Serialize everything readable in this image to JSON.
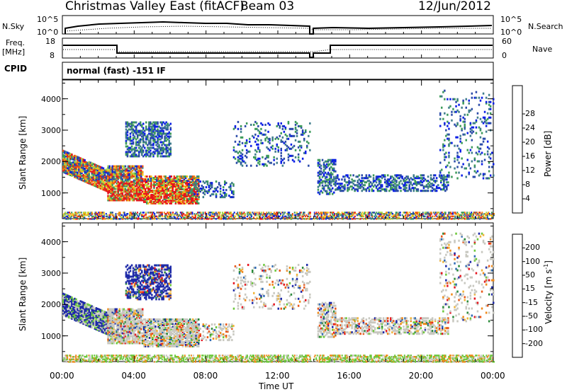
{
  "header": {
    "station_title": "Christmas Valley East (fitACF)",
    "beam_label": "Beam 03",
    "date": "12/Jun/2012"
  },
  "noise_panel": {
    "left_label": "N.Sky",
    "right_label": "N.Search",
    "left_ticks": [
      "10^5",
      "10^0"
    ],
    "right_ticks": [
      "10^5",
      "10^0"
    ]
  },
  "freq_panel": {
    "left_label_1": "Freq.",
    "left_label_2": "[MHz]",
    "right_label": "Nave",
    "left_ticks": [
      "18",
      "8"
    ],
    "right_ticks": [
      "60",
      "0"
    ]
  },
  "cpid_panel": {
    "label": "CPID",
    "program": "normal (fast) -151 IF"
  },
  "chart_data": [
    {
      "type": "heatmap",
      "panel": "power",
      "ylabel": "Slant Range [km]",
      "xlabel": "Time UT",
      "x_ticks": [
        "00:00",
        "04:00",
        "08:00",
        "12:00",
        "16:00",
        "20:00",
        "00:00"
      ],
      "y_ticks": [
        1000,
        2000,
        3000,
        4000
      ],
      "ylim": [
        180,
        4600
      ],
      "xlim_hours": [
        0,
        24
      ],
      "colorbar": {
        "label": "Power [dB]",
        "ticks": [
          "4",
          "8",
          "12",
          "16",
          "20",
          "24",
          "28"
        ],
        "colors": [
          "#0a1ee6",
          "#2a4aa8",
          "#3f7d8c",
          "#3c9a5a",
          "#a6d64a",
          "#f2c318",
          "#f08a14",
          "#e84d12",
          "#e6141e"
        ]
      }
    },
    {
      "type": "heatmap",
      "panel": "velocity",
      "ylabel": "Slant Range [km]",
      "xlabel": "Time UT",
      "x_ticks": [
        "00:00",
        "04:00",
        "08:00",
        "12:00",
        "16:00",
        "20:00",
        "00:00"
      ],
      "y_ticks": [
        1000,
        2000,
        3000,
        4000
      ],
      "ylim": [
        180,
        4600
      ],
      "xlim_hours": [
        0,
        24
      ],
      "colorbar": {
        "label": "Velocity [m s",
        "label_sup": "-1",
        "label_end": "]",
        "ticks": [
          "200",
          "100",
          "50",
          "15",
          "-15",
          "-50",
          "-100",
          "-200"
        ],
        "colors": [
          "#1e2aa8",
          "#2d6ab4",
          "#2b8a3a",
          "#6cc83a",
          "#c8c8c0",
          "#f0b43a",
          "#f08a1a",
          "#e8581a",
          "#e6141e"
        ]
      }
    }
  ],
  "x_axis": {
    "label": "Time UT",
    "ticks": [
      "00:00",
      "04:00",
      "08:00",
      "12:00",
      "16:00",
      "20:00",
      "00:00"
    ]
  }
}
